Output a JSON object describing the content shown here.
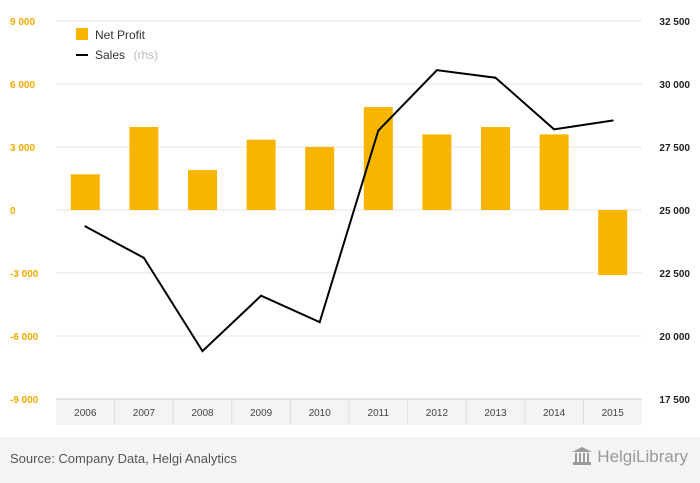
{
  "chart_data": {
    "type": "bar",
    "categories": [
      "2006",
      "2007",
      "2008",
      "2009",
      "2010",
      "2011",
      "2012",
      "2013",
      "2014",
      "2015"
    ],
    "series": [
      {
        "name": "Net Profit",
        "type": "bar",
        "axis": "left",
        "color": "#f7b500",
        "values": [
          1700,
          3950,
          1900,
          3350,
          3000,
          4900,
          3600,
          3950,
          3600,
          -3100
        ]
      },
      {
        "name": "Sales",
        "name_suffix": "(rhs)",
        "type": "line",
        "axis": "right",
        "color": "#000000",
        "values": [
          24350,
          23100,
          19400,
          21600,
          20550,
          28150,
          30550,
          30250,
          28200,
          28550
        ]
      }
    ],
    "y_left": {
      "range": [
        -9000,
        9000
      ],
      "ticks": [
        9000,
        6000,
        3000,
        0,
        -3000,
        -6000,
        -9000
      ],
      "tick_labels": [
        "9 000",
        "6 000",
        "3 000",
        "0",
        "-3 000",
        "-6 000",
        "-9 000"
      ]
    },
    "y_right": {
      "range": [
        17500,
        32500
      ],
      "ticks": [
        32500,
        30000,
        27500,
        25000,
        22500,
        20000,
        17500
      ],
      "tick_labels": [
        "32 500",
        "30 000",
        "27 500",
        "25 000",
        "22 500",
        "20 000",
        "17 500"
      ]
    },
    "grid": true,
    "legend": "top-left"
  },
  "footer": {
    "source": "Source: Company Data, Helgi Analytics",
    "brand": "HelgiLibrary",
    "brand_icon": "library-building-icon"
  }
}
